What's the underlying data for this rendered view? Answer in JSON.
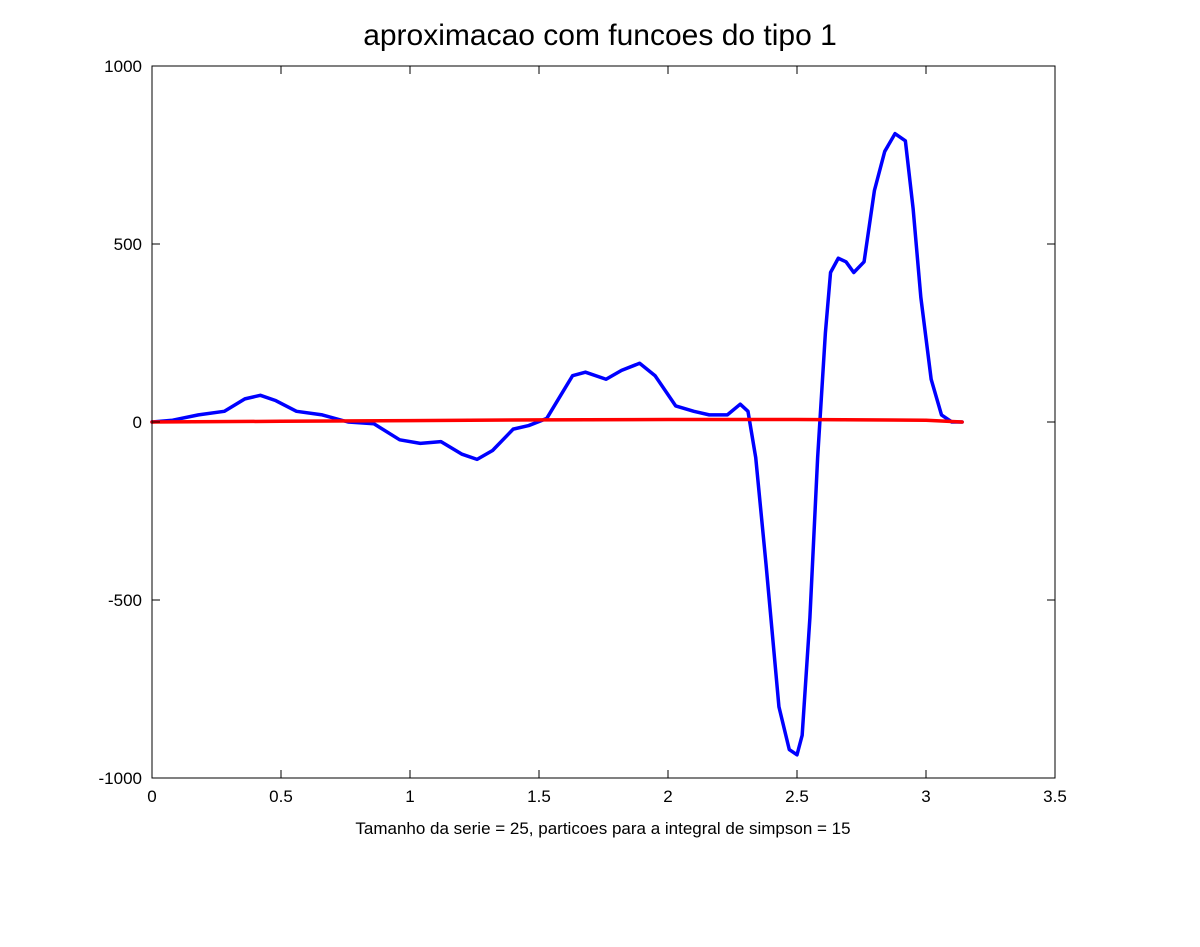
{
  "chart_data": {
    "type": "line",
    "title": "aproximacao com funcoes do tipo 1",
    "xlabel": "Tamanho da serie = 25, particoes para a integral de simpson = 15",
    "ylabel": "",
    "xlim": [
      0,
      3.5
    ],
    "ylim": [
      -1000,
      1000
    ],
    "xticks": [
      0,
      0.5,
      1,
      1.5,
      2,
      2.5,
      3,
      3.5
    ],
    "xtick_labels": [
      "0",
      "0.5",
      "1",
      "1.5",
      "2",
      "2.5",
      "3",
      "3.5"
    ],
    "yticks": [
      1000,
      500,
      0,
      -500,
      -1000
    ],
    "ytick_labels": [
      "1000",
      "500",
      "0",
      "-500",
      "-1000"
    ],
    "grid": false,
    "legend": "none",
    "series": [
      {
        "color": "#0000ff",
        "x": [
          0,
          0.08,
          0.18,
          0.28,
          0.36,
          0.42,
          0.48,
          0.56,
          0.66,
          0.76,
          0.86,
          0.96,
          1.04,
          1.12,
          1.2,
          1.26,
          1.32,
          1.4,
          1.46,
          1.53,
          1.58,
          1.63,
          1.68,
          1.76,
          1.82,
          1.89,
          1.95,
          2.03,
          2.1,
          2.16,
          2.23,
          2.28,
          2.31,
          2.34,
          2.38,
          2.43,
          2.47,
          2.5,
          2.52,
          2.55,
          2.58,
          2.61,
          2.63,
          2.66,
          2.69,
          2.72,
          2.76,
          2.8,
          2.84,
          2.88,
          2.92,
          2.95,
          2.98,
          3.02,
          3.06,
          3.1,
          3.14
        ],
        "y": [
          0,
          5,
          20,
          30,
          65,
          75,
          60,
          30,
          20,
          0,
          -5,
          -50,
          -60,
          -55,
          -90,
          -105,
          -80,
          -20,
          -10,
          10,
          70,
          130,
          140,
          120,
          145,
          165,
          130,
          45,
          30,
          20,
          20,
          50,
          30,
          -100,
          -400,
          -800,
          -920,
          -935,
          -880,
          -550,
          -100,
          250,
          420,
          460,
          450,
          420,
          450,
          650,
          760,
          810,
          790,
          600,
          350,
          120,
          20,
          0,
          0
        ]
      },
      {
        "color": "#ff0000",
        "x": [
          0,
          0.5,
          1,
          1.5,
          2,
          2.5,
          3,
          3.14
        ],
        "y": [
          0,
          2,
          4,
          6,
          7,
          7,
          5,
          0
        ]
      }
    ]
  }
}
